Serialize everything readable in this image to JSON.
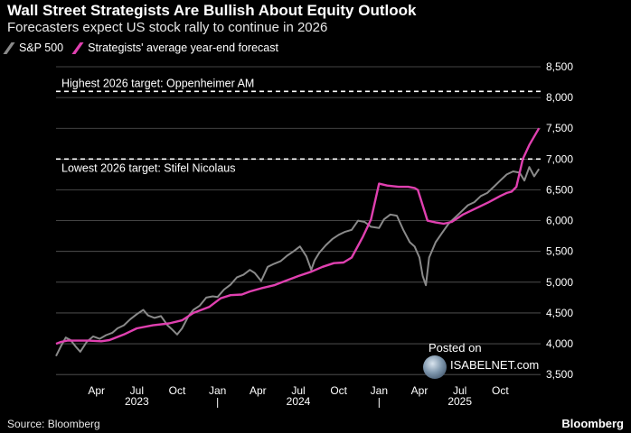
{
  "header": {
    "title": "Wall Street Strategists Are Bullish About Equity Outlook",
    "subtitle": "Forecasters expect US stock rally to continue in 2026"
  },
  "legend": {
    "series1_label": "S&P 500",
    "series2_label": "Strategists' average year-end forecast"
  },
  "colors": {
    "sp500": "#8a8a8a",
    "forecast": "#e040b0",
    "grid": "#5a5a5a",
    "target_line": "#ffffff"
  },
  "footer": {
    "source": "Source: Bloomberg",
    "brand": "Bloomberg"
  },
  "watermark": {
    "posted": "Posted on",
    "site": "ISABELNET.com"
  },
  "chart_data": {
    "type": "line",
    "title": "Wall Street Strategists Are Bullish About Equity Outlook",
    "xlabel": "",
    "ylabel": "",
    "ylim": [
      3400,
      8500
    ],
    "xlim": [
      2023.0,
      2026.0
    ],
    "y_ticks": [
      3500,
      4000,
      4500,
      5000,
      5500,
      6000,
      6500,
      7000,
      7500,
      8000,
      8500
    ],
    "y_tick_labels": [
      "3,500",
      "4,000",
      "4,500",
      "5,000",
      "5,500",
      "6,000",
      "6,500",
      "7,000",
      "7,500",
      "8,000",
      "8,500"
    ],
    "x_ticks": [
      {
        "x": 2023.25,
        "label": "Apr"
      },
      {
        "x": 2023.5,
        "label": "Jul"
      },
      {
        "x": 2023.75,
        "label": "Oct"
      },
      {
        "x": 2024.0,
        "label": "Jan"
      },
      {
        "x": 2024.25,
        "label": "Apr"
      },
      {
        "x": 2024.5,
        "label": "Jul"
      },
      {
        "x": 2024.75,
        "label": "Oct"
      },
      {
        "x": 2025.0,
        "label": "Jan"
      },
      {
        "x": 2025.25,
        "label": "Apr"
      },
      {
        "x": 2025.5,
        "label": "Jul"
      },
      {
        "x": 2025.75,
        "label": "Oct"
      }
    ],
    "year_labels": [
      {
        "x": 2023.5,
        "label": "2023"
      },
      {
        "x": 2024.5,
        "label": "2024"
      },
      {
        "x": 2025.5,
        "label": "2025"
      }
    ],
    "year_separators": [
      2024.0,
      2025.0
    ],
    "reference_lines": [
      {
        "y": 8100,
        "label": "Highest 2026 target: Oppenheimer AM"
      },
      {
        "y": 7000,
        "label": "Lowest 2026 target: Stifel Nicolaus"
      }
    ],
    "series": [
      {
        "name": "S&P 500",
        "x": [
          2023.0,
          2023.03,
          2023.06,
          2023.09,
          2023.12,
          2023.15,
          2023.19,
          2023.23,
          2023.27,
          2023.31,
          2023.35,
          2023.38,
          2023.42,
          2023.46,
          2023.5,
          2023.54,
          2023.57,
          2023.61,
          2023.65,
          2023.69,
          2023.72,
          2023.75,
          2023.78,
          2023.82,
          2023.85,
          2023.89,
          2023.93,
          2023.97,
          2024.0,
          2024.04,
          2024.08,
          2024.12,
          2024.16,
          2024.2,
          2024.23,
          2024.27,
          2024.31,
          2024.35,
          2024.39,
          2024.43,
          2024.47,
          2024.51,
          2024.55,
          2024.58,
          2024.6,
          2024.63,
          2024.67,
          2024.71,
          2024.75,
          2024.79,
          2024.83,
          2024.87,
          2024.91,
          2024.95,
          2025.0,
          2025.03,
          2025.07,
          2025.11,
          2025.15,
          2025.19,
          2025.22,
          2025.25,
          2025.27,
          2025.29,
          2025.31,
          2025.35,
          2025.39,
          2025.43,
          2025.47,
          2025.51,
          2025.55,
          2025.59,
          2025.63,
          2025.67,
          2025.71,
          2025.75,
          2025.79,
          2025.83,
          2025.87,
          2025.9,
          2025.93,
          2025.96,
          2025.99
        ],
        "values": [
          3800,
          3960,
          4100,
          4060,
          3960,
          3870,
          4030,
          4120,
          4080,
          4140,
          4180,
          4250,
          4300,
          4400,
          4480,
          4550,
          4460,
          4420,
          4450,
          4300,
          4230,
          4150,
          4250,
          4450,
          4550,
          4620,
          4750,
          4770,
          4760,
          4880,
          4960,
          5080,
          5120,
          5200,
          5150,
          5020,
          5250,
          5300,
          5340,
          5430,
          5500,
          5580,
          5420,
          5200,
          5350,
          5480,
          5600,
          5700,
          5770,
          5820,
          5850,
          6000,
          5980,
          5900,
          5880,
          6020,
          6100,
          6080,
          5850,
          5650,
          5580,
          5400,
          5100,
          4950,
          5400,
          5650,
          5800,
          5950,
          6050,
          6150,
          6250,
          6300,
          6400,
          6450,
          6550,
          6650,
          6750,
          6800,
          6780,
          6650,
          6870,
          6720,
          6840
        ]
      },
      {
        "name": "Strategists' average year-end forecast",
        "x": [
          2023.0,
          2023.03,
          2023.07,
          2023.12,
          2023.2,
          2023.28,
          2023.33,
          2023.42,
          2023.5,
          2023.6,
          2023.7,
          2023.78,
          2023.85,
          2023.95,
          2024.02,
          2024.08,
          2024.15,
          2024.2,
          2024.27,
          2024.35,
          2024.4,
          2024.45,
          2024.5,
          2024.58,
          2024.65,
          2024.72,
          2024.78,
          2024.83,
          2024.9,
          2024.95,
          2025.0,
          2025.05,
          2025.12,
          2025.18,
          2025.22,
          2025.24,
          2025.3,
          2025.35,
          2025.4,
          2025.45,
          2025.52,
          2025.6,
          2025.68,
          2025.75,
          2025.79,
          2025.82,
          2025.85,
          2025.89,
          2025.93,
          2025.99
        ],
        "values": [
          4000,
          4030,
          4050,
          4050,
          4050,
          4040,
          4060,
          4150,
          4250,
          4300,
          4330,
          4380,
          4500,
          4600,
          4740,
          4790,
          4800,
          4850,
          4900,
          4950,
          5000,
          5050,
          5100,
          5170,
          5250,
          5310,
          5320,
          5400,
          5740,
          6020,
          6600,
          6570,
          6550,
          6550,
          6530,
          6500,
          6000,
          5970,
          5950,
          5980,
          6100,
          6200,
          6300,
          6400,
          6450,
          6470,
          6550,
          7000,
          7230,
          7500
        ]
      }
    ]
  }
}
